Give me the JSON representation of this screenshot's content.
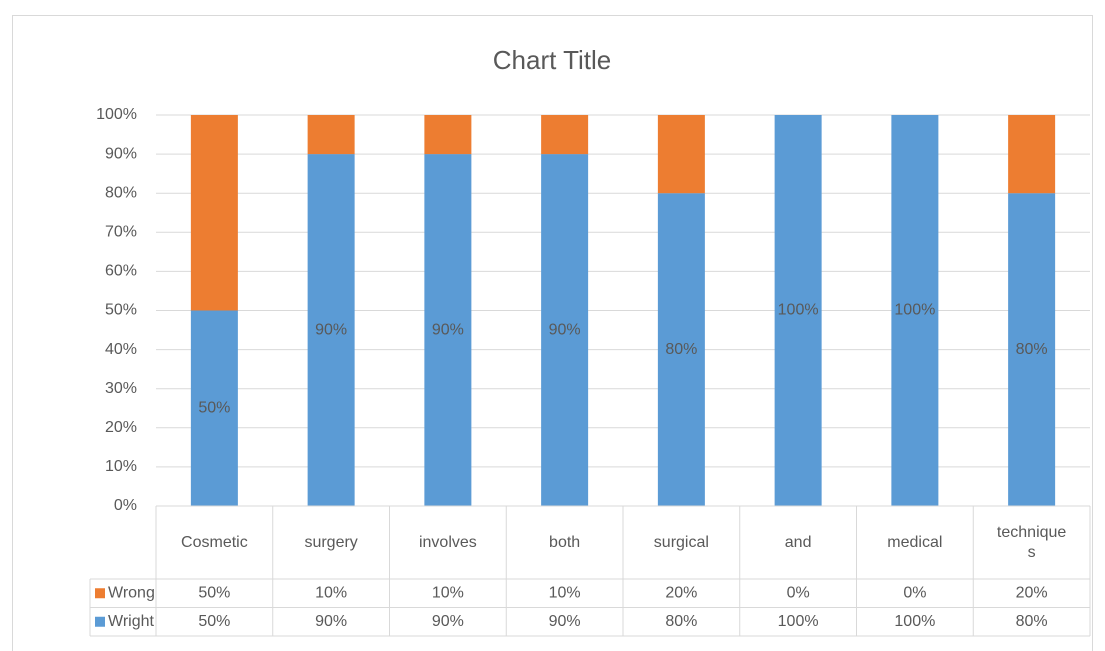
{
  "chart_data": {
    "type": "stacked_bar",
    "title": "Chart Title",
    "categories": [
      "Cosmetic",
      "surgery",
      "involves",
      "both",
      "surgical",
      "and",
      "medical",
      "techniques"
    ],
    "series": [
      {
        "name": "Wright",
        "color": "#5b9bd5",
        "values": [
          50,
          90,
          90,
          90,
          80,
          100,
          100,
          80
        ],
        "value_labels": [
          "50%",
          "90%",
          "90%",
          "90%",
          "80%",
          "100%",
          "100%",
          "80%"
        ]
      },
      {
        "name": "Wrong",
        "color": "#ed7d31",
        "values": [
          50,
          10,
          10,
          10,
          20,
          0,
          0,
          20
        ],
        "value_labels": [
          "50%",
          "10%",
          "10%",
          "10%",
          "20%",
          "0%",
          "0%",
          "20%"
        ]
      }
    ],
    "ylim": [
      0,
      100
    ],
    "yticks": [
      {
        "value": 0,
        "label": "0%"
      },
      {
        "value": 10,
        "label": "10%"
      },
      {
        "value": 20,
        "label": "20%"
      },
      {
        "value": 30,
        "label": "30%"
      },
      {
        "value": 40,
        "label": "40%"
      },
      {
        "value": 50,
        "label": "50%"
      },
      {
        "value": 60,
        "label": "60%"
      },
      {
        "value": 70,
        "label": "70%"
      },
      {
        "value": 80,
        "label": "80%"
      },
      {
        "value": 90,
        "label": "90%"
      },
      {
        "value": 100,
        "label": "100%"
      }
    ],
    "grid": true,
    "data_table": true
  }
}
